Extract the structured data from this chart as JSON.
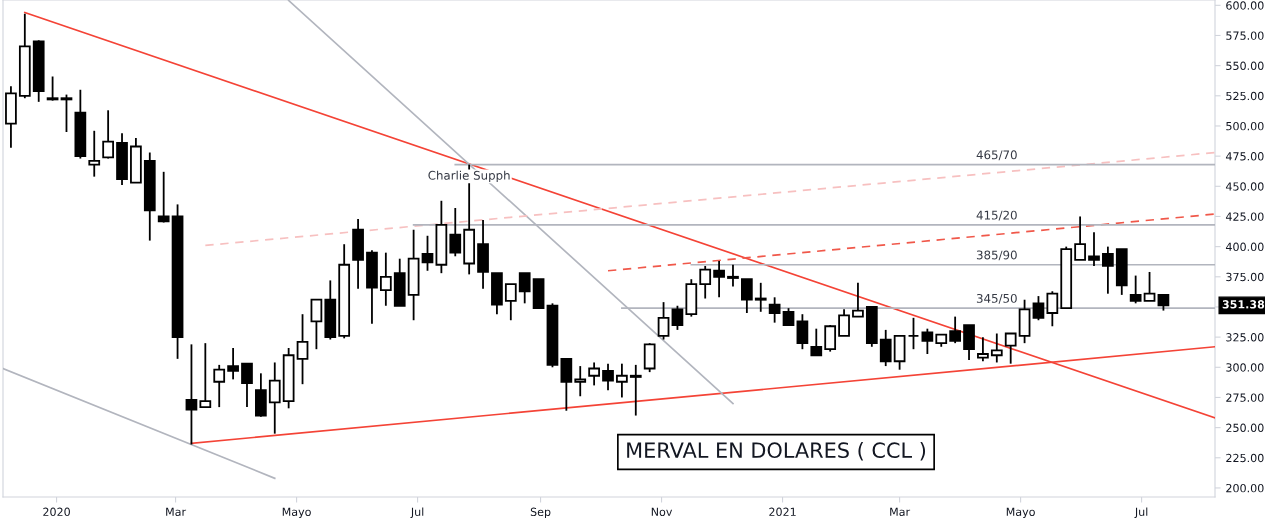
{
  "chart_data": {
    "type": "candlestick",
    "title": "MERVAL EN DOLARES ( CCL )",
    "x": [
      "2019-12-09",
      "2019-12-16",
      "2019-12-23",
      "2019-12-30",
      "2020-01-06",
      "2020-01-13",
      "2020-01-20",
      "2020-01-27",
      "2020-02-03",
      "2020-02-10",
      "2020-02-17",
      "2020-02-24",
      "2020-03-02",
      "2020-03-09",
      "2020-03-16",
      "2020-03-23",
      "2020-03-30",
      "2020-04-06",
      "2020-04-13",
      "2020-04-20",
      "2020-04-27",
      "2020-05-04",
      "2020-05-11",
      "2020-05-18",
      "2020-05-25",
      "2020-06-01",
      "2020-06-08",
      "2020-06-15",
      "2020-06-22",
      "2020-06-29",
      "2020-07-06",
      "2020-07-13",
      "2020-07-20",
      "2020-07-27",
      "2020-08-03",
      "2020-08-10",
      "2020-08-17",
      "2020-08-24",
      "2020-08-31",
      "2020-09-07",
      "2020-09-14",
      "2020-09-21",
      "2020-09-28",
      "2020-10-05",
      "2020-10-12",
      "2020-10-19",
      "2020-10-26",
      "2020-11-02",
      "2020-11-09",
      "2020-11-16",
      "2020-11-23",
      "2020-11-30",
      "2020-12-07",
      "2020-12-14",
      "2020-12-21",
      "2020-12-28",
      "2021-01-04",
      "2021-01-11",
      "2021-01-18",
      "2021-01-25",
      "2021-02-01",
      "2021-02-08",
      "2021-02-15",
      "2021-02-22",
      "2021-03-01",
      "2021-03-08",
      "2021-03-15",
      "2021-03-22",
      "2021-03-29",
      "2021-04-05",
      "2021-04-12",
      "2021-04-19",
      "2021-04-26",
      "2021-05-03",
      "2021-05-10",
      "2021-05-17",
      "2021-05-24",
      "2021-05-31",
      "2021-06-07",
      "2021-06-14",
      "2021-06-21",
      "2021-06-28",
      "2021-07-05",
      "2021-07-12"
    ],
    "ohlc": [
      [
        502,
        533,
        482,
        527
      ],
      [
        525,
        593,
        523,
        566
      ],
      [
        570,
        571,
        520,
        529
      ],
      [
        523,
        541,
        521,
        522
      ],
      [
        522,
        526,
        495,
        523
      ],
      [
        511,
        530,
        473,
        475
      ],
      [
        468,
        496,
        458,
        471
      ],
      [
        474,
        513,
        473,
        487
      ],
      [
        486,
        494,
        451,
        456
      ],
      [
        453,
        490,
        453,
        483
      ],
      [
        471,
        478,
        405,
        430
      ],
      [
        425,
        462,
        420,
        421
      ],
      [
        425,
        435,
        307,
        325
      ],
      [
        273,
        319,
        236,
        265
      ],
      [
        267,
        320,
        267,
        272
      ],
      [
        288,
        302,
        267,
        298
      ],
      [
        301,
        316,
        290,
        297
      ],
      [
        303,
        303,
        267,
        287
      ],
      [
        281,
        295,
        259,
        260
      ],
      [
        271,
        304,
        245,
        289
      ],
      [
        272,
        316,
        266,
        310
      ],
      [
        307,
        344,
        286,
        321
      ],
      [
        338,
        356,
        315,
        356
      ],
      [
        356,
        372,
        323,
        325
      ],
      [
        326,
        402,
        324,
        385
      ],
      [
        414,
        423,
        365,
        389
      ],
      [
        395,
        397,
        336,
        366
      ],
      [
        364,
        395,
        351,
        375
      ],
      [
        378,
        390,
        351,
        351
      ],
      [
        360,
        414,
        339,
        390
      ],
      [
        394,
        409,
        380,
        387
      ],
      [
        385,
        438,
        378,
        418
      ],
      [
        410,
        432,
        392,
        395
      ],
      [
        386,
        468,
        377,
        414
      ],
      [
        402,
        422,
        365,
        379
      ],
      [
        378,
        378,
        344,
        352
      ],
      [
        355,
        369,
        339,
        369
      ],
      [
        378,
        378,
        353,
        363
      ],
      [
        373,
        373,
        349,
        349
      ],
      [
        351,
        353,
        300,
        302
      ],
      [
        307,
        307,
        264,
        288
      ],
      [
        288,
        301,
        276,
        290
      ],
      [
        293,
        304,
        285,
        299
      ],
      [
        297,
        303,
        281,
        289
      ],
      [
        288,
        303,
        275,
        293
      ],
      [
        292,
        302,
        260,
        293
      ],
      [
        299,
        320,
        296,
        319
      ],
      [
        326,
        354,
        323,
        341
      ],
      [
        348,
        351,
        331,
        335
      ],
      [
        344,
        373,
        342,
        369
      ],
      [
        369,
        384,
        357,
        381
      ],
      [
        380,
        388,
        358,
        375
      ],
      [
        375,
        385,
        367,
        374
      ],
      [
        373,
        373,
        345,
        356
      ],
      [
        357,
        370,
        346,
        356
      ],
      [
        352,
        358,
        337,
        345
      ],
      [
        346,
        349,
        335,
        335
      ],
      [
        338,
        344,
        315,
        320
      ],
      [
        317,
        332,
        310,
        310
      ],
      [
        315,
        335,
        313,
        334
      ],
      [
        326,
        348,
        326,
        343
      ],
      [
        342,
        370,
        342,
        347
      ],
      [
        350,
        350,
        317,
        320
      ],
      [
        323,
        331,
        301,
        305
      ],
      [
        305,
        326,
        298,
        326
      ],
      [
        326,
        341,
        315,
        326
      ],
      [
        329,
        332,
        311,
        322
      ],
      [
        320,
        327,
        317,
        327
      ],
      [
        330,
        342,
        320,
        322
      ],
      [
        335,
        335,
        306,
        315
      ],
      [
        308,
        325,
        305,
        311
      ],
      [
        310,
        328,
        304,
        314
      ],
      [
        318,
        328,
        303,
        328
      ],
      [
        326,
        356,
        320,
        348
      ],
      [
        353,
        359,
        339,
        341
      ],
      [
        345,
        363,
        334,
        361
      ],
      [
        349,
        400,
        349,
        398
      ],
      [
        389,
        425,
        389,
        402
      ],
      [
        392,
        412,
        384,
        389
      ],
      [
        394,
        400,
        361,
        384
      ],
      [
        398,
        398,
        360,
        368
      ],
      [
        360,
        376,
        353,
        355
      ],
      [
        355,
        379,
        355,
        361
      ],
      [
        360,
        360,
        347,
        351.38
      ]
    ],
    "series": [
      {
        "type": "line",
        "color": "#f44336",
        "x": [
          "2019-12-16",
          "2021-08-07"
        ],
        "values": [
          594,
          258
        ]
      },
      {
        "type": "line",
        "color": "#f44336",
        "x": [
          "2020-03-09",
          "2021-08-07"
        ],
        "values": [
          237,
          317
        ]
      },
      {
        "type": "line",
        "color": "#b2b5be",
        "x": [
          "2019-12-05",
          "2020-04-20"
        ],
        "values": [
          299,
          208
        ]
      },
      {
        "type": "line",
        "color": "#b2b5be",
        "x": [
          "2020-04-27",
          "2020-12-07"
        ],
        "values": [
          604,
          270
        ]
      },
      {
        "type": "line",
        "color": "#f0584a",
        "line_style": "dashed",
        "x": [
          "2020-10-05",
          "2021-08-07"
        ],
        "values": [
          380,
          427
        ]
      },
      {
        "type": "line",
        "color": "#f7c0c0",
        "line_style": "dashed",
        "x": [
          "2020-03-16",
          "2021-08-07"
        ],
        "values": [
          401,
          478
        ]
      },
      {
        "type": "line",
        "color": "#b2b5be",
        "x": [
          "2020-07-20",
          "2021-08-07"
        ],
        "values": [
          468,
          468
        ]
      },
      {
        "type": "line",
        "color": "#b2b5be",
        "x": [
          "2020-06-29",
          "2021-08-07"
        ],
        "values": [
          418,
          418
        ]
      },
      {
        "type": "line",
        "color": "#b2b5be",
        "x": [
          "2020-11-16",
          "2021-08-07"
        ],
        "values": [
          385,
          385
        ]
      },
      {
        "type": "line",
        "color": "#b2b5be",
        "x": [
          "2020-10-12",
          "2021-08-07"
        ],
        "values": [
          349,
          349
        ]
      }
    ],
    "annotations": [
      {
        "text": "465/70",
        "x": "2021-04-19",
        "y": 468
      },
      {
        "text": "415/20",
        "x": "2021-04-19",
        "y": 418
      },
      {
        "text": "385/90",
        "x": "2021-04-19",
        "y": 385
      },
      {
        "text": "345/50",
        "x": "2021-04-19",
        "y": 349
      },
      {
        "text": "Charlie Supph",
        "x": "2020-07-27",
        "y": 451
      },
      "351.38"
    ],
    "xlim": [
      "2019-12-05",
      "2021-08-07"
    ],
    "xticks": [
      {
        "value": "2020-01-01",
        "label": "2020"
      },
      {
        "value": "2020-03-01",
        "label": "Mar"
      },
      {
        "value": "2020-05-01",
        "label": "Mayo"
      },
      {
        "value": "2020-07-01",
        "label": "Jul"
      },
      {
        "value": "2020-09-01",
        "label": "Sep"
      },
      {
        "value": "2020-11-01",
        "label": "Nov"
      },
      {
        "value": "2021-01-01",
        "label": "2021"
      },
      {
        "value": "2021-03-01",
        "label": "Mar"
      },
      {
        "value": "2021-05-01",
        "label": "Mayo"
      },
      {
        "value": "2021-07-01",
        "label": "Jul"
      }
    ],
    "ylim": [
      192.5,
      604.4
    ],
    "yticks": [
      {
        "value": 200,
        "label": "200.00"
      },
      {
        "value": 225,
        "label": "225.00"
      },
      {
        "value": 250,
        "label": "250.00"
      },
      {
        "value": 275,
        "label": "275.00"
      },
      {
        "value": 300,
        "label": "300.00"
      },
      {
        "value": 325,
        "label": "325.00"
      },
      {
        "value": 350,
        "label": null
      },
      {
        "value": 375,
        "label": "375.00"
      },
      {
        "value": 400,
        "label": "400.00"
      },
      {
        "value": 425,
        "label": "425.00"
      },
      {
        "value": 450,
        "label": "450.00"
      },
      {
        "value": 475,
        "label": "475.00"
      },
      {
        "value": 500,
        "label": "500.00"
      },
      {
        "value": 525,
        "label": "525.00"
      },
      {
        "value": 550,
        "label": "550.00"
      },
      {
        "value": 575,
        "label": "575.00"
      },
      {
        "value": 600,
        "label": "600.00"
      }
    ],
    "grid": false,
    "legend": false
  }
}
